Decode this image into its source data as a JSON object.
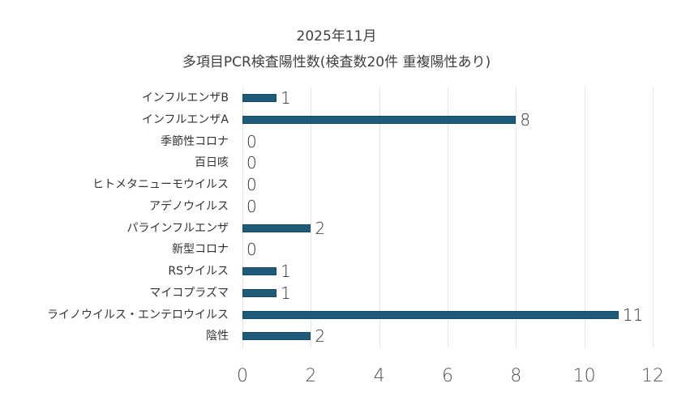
{
  "chart": {
    "title": "2025年11月",
    "subtitle": "多項目PCR検査陽性数(検査数20件 重複陽性あり)",
    "bar_color": "#1d5b79"
  },
  "chart_data": {
    "type": "bar",
    "orientation": "horizontal",
    "title": "2025年11月",
    "subtitle": "多項目PCR検査陽性数(検査数20件 重複陽性あり)",
    "categories": [
      "インフルエンザB",
      "インフルエンザA",
      "季節性コロナ",
      "百日咳",
      "ヒトメタニューモウイルス",
      "アデノウイルス",
      "パラインフルエンザ",
      "新型コロナ",
      "RSウイルス",
      "マイコプラズマ",
      "ライノウイルス・エンテロウイルス",
      "陰性"
    ],
    "values": [
      1,
      8,
      0,
      0,
      0,
      0,
      2,
      0,
      1,
      1,
      11,
      2
    ],
    "xlabel": "",
    "ylabel": "",
    "xlim": [
      0,
      12
    ],
    "xticks": [
      "0",
      "2",
      "4",
      "6",
      "8",
      "10",
      "12"
    ],
    "grid": true,
    "legend": null,
    "data_labels": true
  }
}
